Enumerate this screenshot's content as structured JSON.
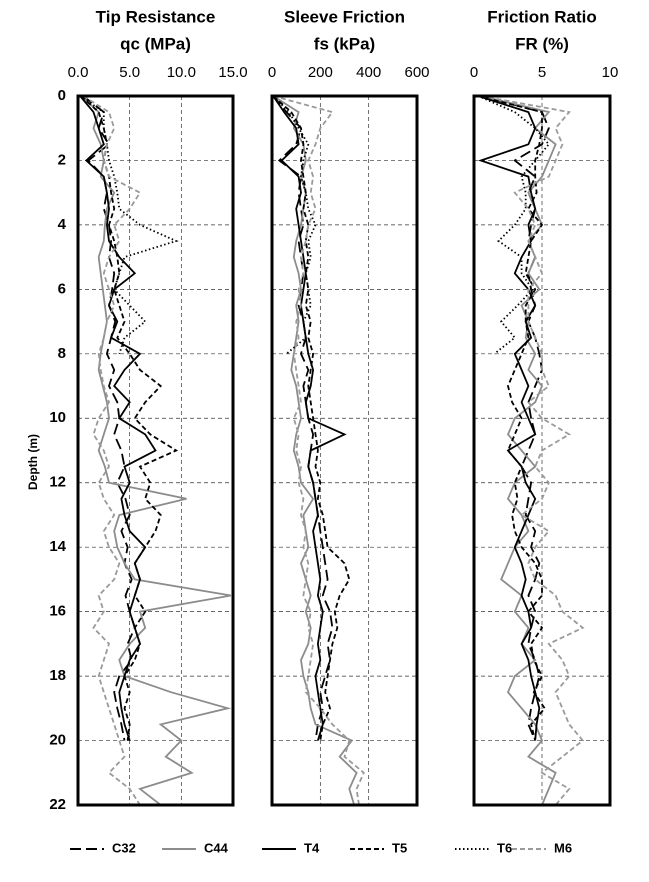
{
  "chart_data": [
    {
      "type": "line",
      "title": "Tip Resistance",
      "xlabel": "qc (MPa)",
      "ylabel": "Depth (m)",
      "xlim": [
        0,
        15
      ],
      "xticks": [
        {
          "value": 0,
          "label": "0.0"
        },
        {
          "value": 5,
          "label": "5.0"
        },
        {
          "value": 10,
          "label": "10.0"
        },
        {
          "value": 15,
          "label": "15.0"
        }
      ],
      "ylim": [
        0,
        22
      ],
      "yticks": [
        0,
        2,
        4,
        6,
        8,
        10,
        12,
        14,
        16,
        18,
        20,
        22
      ],
      "y_inverted": true,
      "grid": true,
      "y": [
        0,
        0.5,
        1,
        1.5,
        2,
        2.5,
        3,
        3.5,
        4,
        4.5,
        5,
        5.5,
        6,
        6.5,
        7,
        7.5,
        8,
        8.5,
        9,
        9.5,
        10,
        10.5,
        11,
        11.5,
        12,
        12.5,
        13,
        13.5,
        14,
        14.5,
        15,
        15.5,
        16,
        16.5,
        17,
        17.5,
        18,
        18.5,
        19,
        19.5,
        20,
        20.5,
        21,
        21.5,
        22
      ],
      "series": [
        {
          "values": [
            0.5,
            2.5,
            2.0,
            3.0,
            1.0,
            2.5,
            2.8,
            2.5,
            3.0,
            3.2,
            3.0,
            3.5,
            3.3,
            3.0,
            3.6,
            3.2,
            2.8,
            3.5,
            3.0,
            3.8,
            4.0,
            3.5,
            4.2,
            4.5,
            3.8,
            4.6,
            5.0,
            4.2,
            4.8,
            4.5,
            5.2,
            4.6,
            5.0,
            5.5,
            4.8,
            5.2,
            4.0,
            3.5,
            3.8,
            4.2,
            4.5,
            null,
            null,
            null,
            null
          ]
        },
        {
          "values": [
            0.3,
            2.0,
            1.5,
            2.2,
            2.5,
            2.2,
            3.5,
            2.8,
            2.6,
            2.5,
            2.0,
            2.2,
            2.4,
            2.6,
            2.8,
            2.5,
            2.2,
            2.0,
            2.4,
            2.8,
            3.0,
            2.5,
            2.0,
            2.6,
            3.0,
            10.5,
            4.0,
            3.5,
            3.8,
            4.5,
            5.5,
            14.8,
            6.0,
            6.5,
            5.0,
            4.0,
            4.5,
            9.0,
            14.5,
            8.0,
            10.0,
            8.5,
            11.0,
            6.0,
            8.0
          ]
        },
        {
          "values": [
            0.2,
            1.5,
            2.0,
            2.5,
            0.8,
            2.5,
            2.8,
            3.0,
            2.8,
            3.0,
            4.0,
            5.5,
            3.5,
            3.0,
            3.8,
            3.2,
            6.0,
            4.5,
            3.5,
            5.0,
            4.0,
            6.5,
            7.5,
            4.5,
            5.0,
            4.2,
            4.5,
            5.0,
            6.5,
            5.5,
            6.0,
            5.5,
            5.0,
            5.5,
            6.0,
            5.0,
            4.5,
            4.0,
            4.2,
            4.5,
            5.0,
            null,
            null,
            null,
            null
          ]
        },
        {
          "values": [
            0.3,
            2.0,
            2.5,
            2.8,
            2.5,
            3.0,
            3.2,
            3.5,
            3.0,
            3.5,
            3.8,
            4.0,
            3.5,
            4.0,
            4.5,
            3.8,
            5.0,
            6.0,
            8.0,
            6.5,
            5.5,
            7.0,
            9.5,
            6.0,
            7.0,
            6.5,
            8.0,
            7.5,
            6.5,
            5.5,
            6.0,
            5.5,
            6.5,
            5.5,
            6.0,
            5.5,
            4.5,
            5.0,
            4.5,
            5.0,
            4.8,
            null,
            null,
            null,
            null
          ]
        },
        {
          "values": [
            0.2,
            2.5,
            2.5,
            2.8,
            3.0,
            3.5,
            3.8,
            4.0,
            6.0,
            9.5,
            4.5,
            4.0,
            3.5,
            5.0,
            6.5,
            4.5,
            4.0,
            null,
            null,
            null,
            null,
            null,
            null,
            null,
            null,
            null,
            null,
            null,
            null,
            null,
            null,
            null,
            null,
            null,
            null,
            null,
            null,
            null,
            null,
            null,
            null,
            null,
            null,
            null,
            null
          ]
        },
        {
          "values": [
            0.5,
            3.0,
            3.5,
            2.8,
            2.5,
            3.0,
            6.0,
            5.0,
            3.5,
            4.0,
            3.0,
            2.5,
            3.0,
            3.5,
            2.8,
            2.5,
            2.0,
            2.2,
            2.5,
            3.0,
            2.0,
            1.5,
            2.5,
            3.0,
            2.0,
            2.5,
            3.5,
            2.5,
            3.0,
            4.0,
            3.5,
            2.0,
            2.5,
            1.5,
            3.0,
            2.5,
            2.0,
            2.5,
            3.0,
            3.5,
            4.0,
            4.5,
            3.0,
            5.0,
            6.0
          ]
        }
      ]
    },
    {
      "type": "line",
      "title": "Sleeve Friction",
      "xlabel": "fs (kPa)",
      "xlim": [
        0,
        600
      ],
      "xticks": [
        0,
        200,
        400,
        600
      ],
      "ylim": [
        0,
        22
      ],
      "yticks": [
        0,
        2,
        4,
        6,
        8,
        10,
        12,
        14,
        16,
        18,
        20,
        22
      ],
      "y_inverted": true,
      "grid": true,
      "y": [
        0,
        0.5,
        1,
        1.5,
        2,
        2.5,
        3,
        3.5,
        4,
        4.5,
        5,
        5.5,
        6,
        6.5,
        7,
        7.5,
        8,
        8.5,
        9,
        9.5,
        10,
        10.5,
        11,
        11.5,
        12,
        12.5,
        13,
        13.5,
        14,
        14.5,
        15,
        15.5,
        16,
        16.5,
        17,
        17.5,
        18,
        18.5,
        19,
        19.5,
        20,
        20.5,
        21,
        21.5,
        22
      ],
      "series": [
        {
          "values": [
            5,
            60,
            120,
            100,
            30,
            120,
            110,
            120,
            130,
            110,
            120,
            130,
            120,
            110,
            130,
            140,
            120,
            150,
            130,
            140,
            150,
            170,
            160,
            150,
            170,
            180,
            190,
            200,
            210,
            220,
            230,
            210,
            240,
            250,
            230,
            240,
            220,
            200,
            210,
            190,
            180,
            null,
            null,
            null,
            null
          ]
        },
        {
          "values": [
            5,
            110,
            90,
            130,
            140,
            120,
            140,
            130,
            120,
            100,
            90,
            110,
            120,
            100,
            110,
            100,
            90,
            80,
            100,
            110,
            120,
            100,
            90,
            110,
            120,
            170,
            130,
            140,
            150,
            120,
            140,
            160,
            140,
            160,
            150,
            120,
            130,
            150,
            160,
            180,
            330,
            280,
            350,
            320,
            340
          ]
        },
        {
          "values": [
            5,
            50,
            100,
            110,
            40,
            110,
            120,
            100,
            110,
            120,
            130,
            140,
            130,
            120,
            130,
            140,
            150,
            170,
            160,
            140,
            150,
            300,
            160,
            150,
            170,
            180,
            190,
            170,
            180,
            190,
            200,
            190,
            210,
            200,
            190,
            200,
            180,
            190,
            200,
            210,
            190,
            null,
            null,
            null,
            null
          ]
        },
        {
          "values": [
            5,
            80,
            120,
            130,
            120,
            130,
            140,
            130,
            150,
            140,
            150,
            140,
            150,
            140,
            160,
            150,
            170,
            160,
            150,
            160,
            170,
            180,
            190,
            180,
            200,
            190,
            210,
            220,
            230,
            300,
            320,
            280,
            260,
            270,
            250,
            240,
            230,
            220,
            240,
            210,
            200,
            null,
            null,
            null,
            null
          ]
        },
        {
          "values": [
            5,
            70,
            110,
            150,
            130,
            120,
            140,
            150,
            180,
            150,
            160,
            140,
            150,
            160,
            130,
            140,
            60,
            null,
            null,
            null,
            null,
            null,
            null,
            null,
            null,
            null,
            null,
            null,
            null,
            null,
            null,
            null,
            null,
            null,
            null,
            null,
            null,
            null,
            null,
            null,
            null,
            null,
            null,
            null,
            null
          ]
        },
        {
          "values": [
            5,
            250,
            200,
            180,
            150,
            170,
            160,
            180,
            150,
            140,
            120,
            130,
            110,
            120,
            100,
            110,
            90,
            100,
            110,
            120,
            90,
            110,
            100,
            120,
            110,
            130,
            120,
            140,
            130,
            150,
            140,
            130,
            160,
            150,
            170,
            160,
            150,
            140,
            200,
            250,
            320,
            300,
            380,
            350,
            360
          ]
        }
      ]
    },
    {
      "type": "line",
      "title": "Friction Ratio",
      "xlabel": "FR (%)",
      "xlim": [
        0,
        10
      ],
      "xticks": [
        0,
        5,
        10
      ],
      "ylim": [
        0,
        22
      ],
      "yticks": [
        0,
        2,
        4,
        6,
        8,
        10,
        12,
        14,
        16,
        18,
        20,
        22
      ],
      "y_inverted": true,
      "grid": true,
      "y": [
        0,
        0.5,
        1,
        1.5,
        2,
        2.5,
        3,
        3.5,
        4,
        4.5,
        5,
        5.5,
        6,
        6.5,
        7,
        7.5,
        8,
        8.5,
        9,
        9.5,
        10,
        10.5,
        11,
        11.5,
        12,
        12.5,
        13,
        13.5,
        14,
        14.5,
        15,
        15.5,
        16,
        16.5,
        17,
        17.5,
        18,
        18.5,
        19,
        19.5,
        20,
        20.5,
        21,
        21.5,
        22
      ],
      "series": [
        {
          "values": [
            0.5,
            5.0,
            5.5,
            5.0,
            3.0,
            4.5,
            4.0,
            4.5,
            4.2,
            4.0,
            4.5,
            4.0,
            4.2,
            4.5,
            4.0,
            4.5,
            4.8,
            5.0,
            4.5,
            4.0,
            4.2,
            4.5,
            4.0,
            3.5,
            4.2,
            4.0,
            3.8,
            4.5,
            4.2,
            4.8,
            4.5,
            4.0,
            4.5,
            4.2,
            4.0,
            4.5,
            4.8,
            4.5,
            4.2,
            4.0,
            4.5,
            null,
            null,
            null,
            null
          ]
        },
        {
          "values": [
            0.5,
            5.5,
            4.5,
            6.0,
            5.5,
            5.0,
            4.0,
            4.5,
            5.0,
            4.0,
            4.5,
            4.0,
            4.8,
            3.5,
            4.0,
            3.8,
            4.5,
            4.0,
            5.0,
            4.5,
            3.0,
            2.5,
            3.5,
            4.5,
            3.0,
            2.5,
            3.5,
            4.0,
            3.0,
            2.5,
            2.0,
            3.5,
            3.0,
            4.0,
            3.5,
            4.5,
            3.0,
            2.5,
            3.5,
            4.5,
            5.0,
            4.0,
            6.0,
            5.5,
            5.0
          ]
        },
        {
          "values": [
            0.3,
            4.0,
            4.5,
            4.0,
            0.5,
            4.0,
            4.2,
            4.5,
            4.0,
            4.2,
            3.5,
            3.0,
            4.0,
            4.5,
            3.8,
            4.2,
            3.0,
            3.5,
            4.0,
            3.5,
            4.0,
            4.5,
            2.5,
            3.5,
            3.8,
            4.5,
            4.0,
            3.5,
            3.0,
            3.5,
            3.8,
            3.5,
            4.0,
            4.2,
            3.5,
            4.0,
            4.2,
            4.5,
            4.8,
            4.6,
            4.5,
            null,
            null,
            null,
            null
          ]
        },
        {
          "values": [
            0.3,
            5.0,
            5.0,
            4.8,
            4.5,
            4.5,
            4.6,
            4.0,
            5.0,
            4.2,
            4.0,
            3.8,
            4.5,
            3.8,
            3.8,
            4.0,
            3.5,
            3.0,
            2.5,
            2.8,
            3.5,
            3.0,
            2.5,
            3.5,
            3.0,
            3.2,
            2.8,
            3.0,
            3.5,
            4.5,
            5.0,
            5.0,
            4.0,
            5.0,
            4.2,
            4.4,
            5.0,
            4.4,
            5.2,
            4.2,
            4.5,
            null,
            null,
            null,
            null
          ]
        },
        {
          "values": [
            0.3,
            3.0,
            4.5,
            5.5,
            4.5,
            3.5,
            3.8,
            3.8,
            3.0,
            1.8,
            3.5,
            3.5,
            4.3,
            3.2,
            2.0,
            3.0,
            1.5,
            null,
            null,
            null,
            null,
            null,
            null,
            null,
            null,
            null,
            null,
            null,
            null,
            null,
            null,
            null,
            null,
            null,
            null,
            null,
            null,
            null,
            null,
            null,
            null,
            null,
            null,
            null,
            null
          ]
        },
        {
          "values": [
            0.5,
            7.0,
            6.0,
            6.5,
            6.0,
            5.5,
            3.0,
            4.0,
            4.5,
            4.0,
            4.5,
            5.0,
            4.0,
            4.0,
            4.0,
            4.5,
            5.0,
            5.0,
            5.5,
            4.0,
            5.0,
            7.0,
            5.0,
            4.5,
            5.5,
            5.0,
            3.5,
            5.5,
            4.5,
            4.0,
            4.5,
            6.0,
            6.5,
            8.0,
            5.5,
            6.5,
            7.0,
            6.0,
            6.5,
            7.0,
            8.0,
            6.5,
            5.0,
            7.0,
            6.0
          ]
        }
      ]
    }
  ],
  "legend": [
    {
      "name": "C32",
      "color": "#000000",
      "dash": "long-dash"
    },
    {
      "name": "C44",
      "color": "#8c8c8c",
      "dash": "solid"
    },
    {
      "name": "T4",
      "color": "#000000",
      "dash": "solid"
    },
    {
      "name": "T5",
      "color": "#000000",
      "dash": "dash"
    },
    {
      "name": "T6",
      "color": "#000000",
      "dash": "dot"
    },
    {
      "name": "M6",
      "color": "#9a9a9a",
      "dash": "dash"
    }
  ]
}
